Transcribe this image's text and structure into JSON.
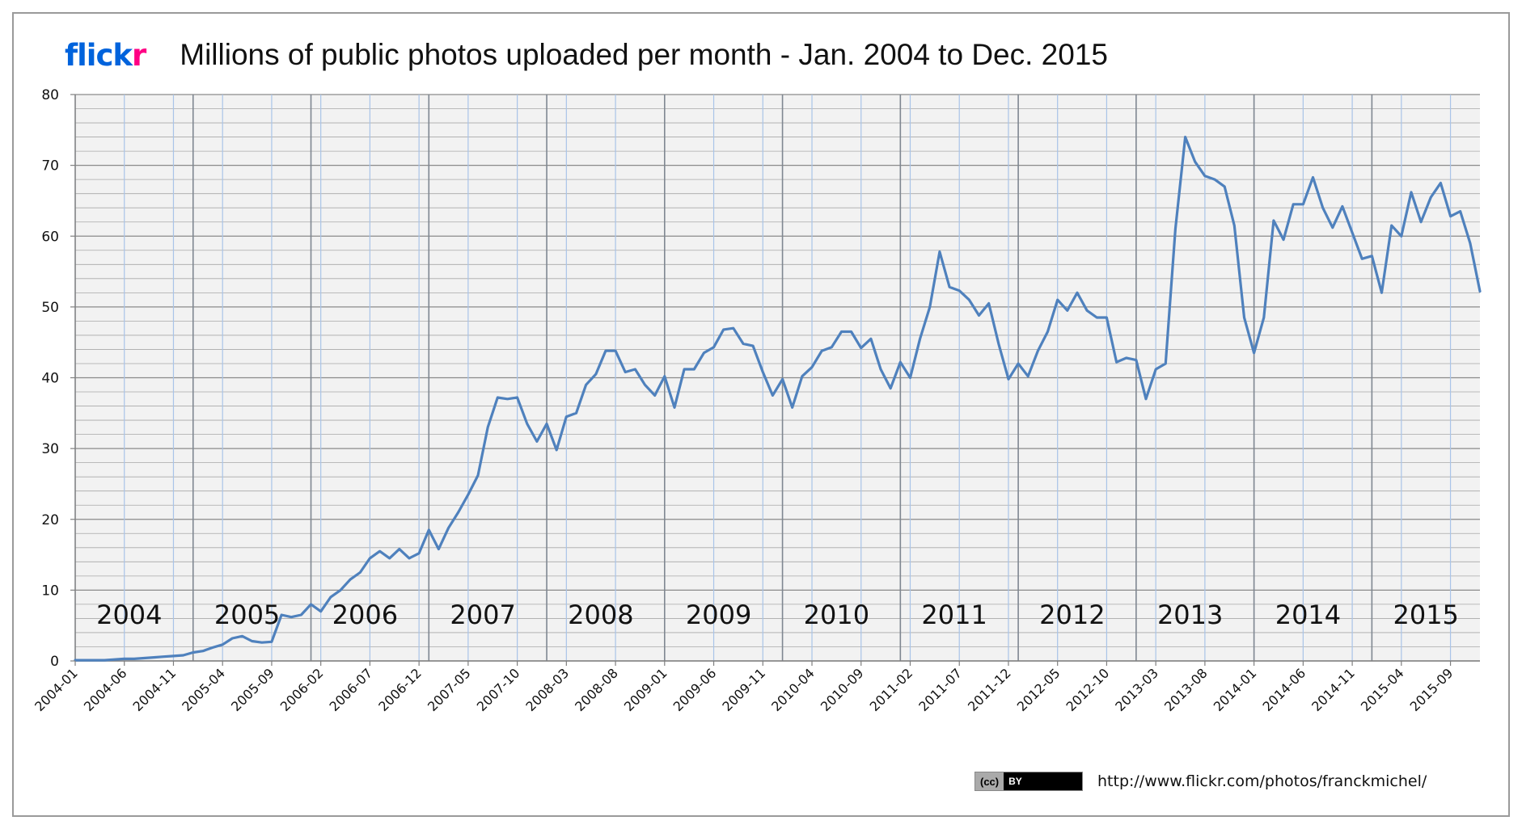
{
  "header": {
    "logo_part1": "flick",
    "logo_part2": "r",
    "title": "Millions of public photos uploaded per month - Jan. 2004 to Dec. 2015"
  },
  "footer": {
    "license_left": "(cc)",
    "license_right": "BY",
    "url": "http://www.flickr.com/photos/franckmichel/"
  },
  "chart_data": {
    "type": "line",
    "title": "Millions of public photos uploaded per month - Jan. 2004 to Dec. 2015",
    "xlabel": "",
    "ylabel": "",
    "ylim": [
      0,
      80
    ],
    "yticks": [
      0,
      10,
      20,
      30,
      40,
      50,
      60,
      70,
      80
    ],
    "grid": true,
    "legend": "none",
    "line_color": "#4f81bd",
    "start_month": "2004-01",
    "x_tick_labels": [
      "2004-01",
      "2004-06",
      "2004-11",
      "2005-04",
      "2005-09",
      "2006-02",
      "2006-07",
      "2006-12",
      "2007-05",
      "2007-10",
      "2008-03",
      "2008-08",
      "2009-01",
      "2009-06",
      "2009-11",
      "2010-04",
      "2010-09",
      "2011-02",
      "2011-07",
      "2011-12",
      "2012-05",
      "2012-10",
      "2013-03",
      "2013-08",
      "2014-01",
      "2014-06",
      "2014-11",
      "2015-04",
      "2015-09"
    ],
    "year_labels": [
      "2004",
      "2005",
      "2006",
      "2007",
      "2008",
      "2009",
      "2010",
      "2011",
      "2012",
      "2013",
      "2014",
      "2015"
    ],
    "values": [
      0.1,
      0.1,
      0.1,
      0.1,
      0.2,
      0.3,
      0.3,
      0.4,
      0.5,
      0.6,
      0.7,
      0.8,
      1.2,
      1.4,
      1.9,
      2.3,
      3.2,
      3.5,
      2.8,
      2.6,
      2.7,
      6.5,
      6.2,
      6.5,
      8.0,
      7.0,
      9.0,
      10.0,
      11.5,
      12.5,
      14.5,
      15.5,
      14.5,
      15.8,
      14.5,
      15.2,
      18.5,
      15.8,
      18.8,
      21.0,
      23.5,
      26.2,
      33.0,
      37.2,
      37.0,
      37.2,
      33.5,
      31.0,
      33.5,
      29.8,
      34.5,
      35.0,
      39.0,
      40.5,
      43.8,
      43.8,
      40.8,
      41.2,
      39.0,
      37.5,
      40.2,
      35.8,
      41.2,
      41.2,
      43.5,
      44.3,
      46.8,
      47.0,
      44.8,
      44.5,
      40.8,
      37.5,
      39.8,
      35.8,
      40.2,
      41.5,
      43.8,
      44.3,
      46.5,
      46.5,
      44.2,
      45.5,
      41.2,
      38.5,
      42.2,
      40.0,
      45.5,
      50.0,
      57.8,
      52.8,
      52.3,
      51.0,
      48.8,
      50.5,
      44.8,
      39.8,
      42.0,
      40.2,
      43.8,
      46.5,
      51.0,
      49.5,
      52.0,
      49.5,
      48.5,
      48.5,
      42.2,
      42.8,
      42.5,
      37.0,
      41.2,
      42.0,
      61.0,
      74.0,
      70.5,
      68.5,
      68.0,
      67.0,
      61.5,
      48.5,
      43.5,
      48.5,
      62.2,
      59.5,
      64.5,
      64.5,
      68.3,
      64.0,
      61.2,
      64.2,
      60.5,
      56.8,
      57.2,
      52.0,
      61.5,
      60.0,
      66.2,
      62.0,
      65.5,
      67.5,
      62.8,
      63.5,
      59.0,
      52.2
    ]
  }
}
